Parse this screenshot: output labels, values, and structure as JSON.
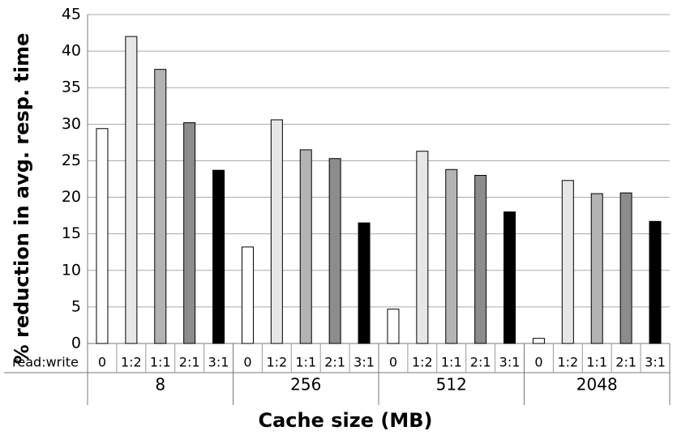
{
  "chart_data": {
    "type": "bar",
    "y_label": "% reduction in avg. resp. time",
    "x_label": "Cache size (MB)",
    "sub_label": "read:write",
    "categories": [
      "8",
      "256",
      "512",
      "2048"
    ],
    "series": [
      {
        "name": "0",
        "color": "#ffffff",
        "values": [
          29.4,
          13.2,
          4.7,
          0.7
        ]
      },
      {
        "name": "1:2",
        "color": "#e6e6e6",
        "values": [
          42,
          30.6,
          26.3,
          22.3
        ]
      },
      {
        "name": "1:1",
        "color": "#b3b3b3",
        "values": [
          37.5,
          26.5,
          23.8,
          20.5
        ]
      },
      {
        "name": "2:1",
        "color": "#8c8c8c",
        "values": [
          30.2,
          25.3,
          23.0,
          20.6
        ]
      },
      {
        "name": "3:1",
        "color": "#000000",
        "values": [
          23.7,
          16.5,
          18.0,
          16.7
        ]
      }
    ],
    "ylim": [
      0,
      45
    ],
    "yticks": [
      0,
      5,
      10,
      15,
      20,
      25,
      30,
      35,
      40,
      45
    ],
    "grid": true
  }
}
